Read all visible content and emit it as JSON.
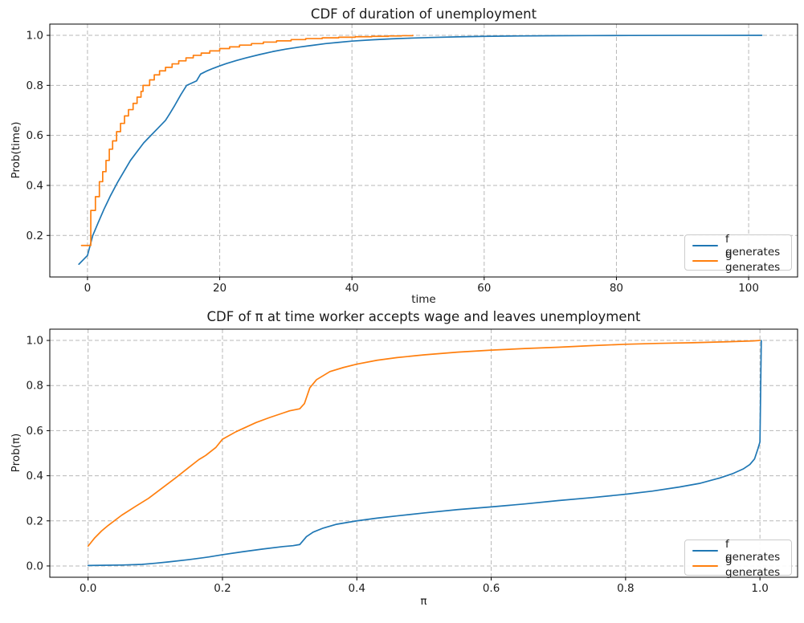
{
  "figure": {
    "background": "#ffffff",
    "text_color": "#1c1c1c",
    "grid_color": "#b8b8b8",
    "spine_color": "#000000"
  },
  "chart_data": [
    {
      "type": "line",
      "title": "CDF of duration of unemployment",
      "xlabel": "time",
      "ylabel": "Prob(time)",
      "xlim": [
        -5.7,
        107.4
      ],
      "ylim": [
        0.034,
        1.045
      ],
      "grid": true,
      "xticks": {
        "values": [
          0,
          20,
          40,
          60,
          80,
          100
        ],
        "labels": [
          "0",
          "20",
          "40",
          "60",
          "80",
          "100"
        ]
      },
      "yticks": {
        "values": [
          0.2,
          0.4,
          0.6,
          0.8,
          1.0
        ],
        "labels": [
          "0.2",
          "0.4",
          "0.6",
          "0.8",
          "1.0"
        ]
      },
      "legend": {
        "location": "lower right"
      },
      "series": [
        {
          "name": "f generates",
          "color": "#1f77b4",
          "style": "line",
          "points": [
            [
              -1.3,
              0.085
            ],
            [
              0,
              0.12
            ],
            [
              0.8,
              0.2
            ],
            [
              1.6,
              0.25
            ],
            [
              2.5,
              0.305
            ],
            [
              3.5,
              0.36
            ],
            [
              4.5,
              0.41
            ],
            [
              5.5,
              0.455
            ],
            [
              6.5,
              0.5
            ],
            [
              7.5,
              0.535
            ],
            [
              8.5,
              0.57
            ],
            [
              9.6,
              0.6
            ],
            [
              10.7,
              0.63
            ],
            [
              11.8,
              0.66
            ],
            [
              12.4,
              0.685
            ],
            [
              13.2,
              0.72
            ],
            [
              14.1,
              0.762
            ],
            [
              15,
              0.8
            ],
            [
              16,
              0.812
            ],
            [
              16.5,
              0.818
            ],
            [
              17.1,
              0.845
            ],
            [
              18,
              0.857
            ],
            [
              19,
              0.868
            ],
            [
              20,
              0.878
            ],
            [
              21,
              0.887
            ],
            [
              22.5,
              0.899
            ],
            [
              24,
              0.91
            ],
            [
              26,
              0.923
            ],
            [
              28,
              0.935
            ],
            [
              30,
              0.945
            ],
            [
              32,
              0.953
            ],
            [
              34,
              0.96
            ],
            [
              36,
              0.967
            ],
            [
              38,
              0.972
            ],
            [
              40,
              0.977
            ],
            [
              43,
              0.982
            ],
            [
              46,
              0.986
            ],
            [
              49,
              0.989
            ],
            [
              52,
              0.9915
            ],
            [
              56,
              0.994
            ],
            [
              60,
              0.996
            ],
            [
              65,
              0.9975
            ],
            [
              70,
              0.9984
            ],
            [
              76,
              0.9991
            ],
            [
              82,
              0.9995
            ],
            [
              90,
              0.9998
            ],
            [
              102,
              1.0
            ]
          ]
        },
        {
          "name": "g generates",
          "color": "#ff7f0e",
          "style": "step",
          "points": [
            [
              -0.9,
              0.16
            ],
            [
              0.45,
              0.16
            ],
            [
              0.5,
              0.3
            ],
            [
              1.2,
              0.355
            ],
            [
              1.8,
              0.415
            ],
            [
              2.3,
              0.455
            ],
            [
              2.8,
              0.5
            ],
            [
              3.3,
              0.545
            ],
            [
              3.8,
              0.578
            ],
            [
              4.4,
              0.615
            ],
            [
              5.0,
              0.648
            ],
            [
              5.6,
              0.678
            ],
            [
              6.2,
              0.703
            ],
            [
              6.9,
              0.728
            ],
            [
              7.5,
              0.753
            ],
            [
              8.1,
              0.776
            ],
            [
              8.4,
              0.8
            ],
            [
              9.4,
              0.822
            ],
            [
              10.1,
              0.842
            ],
            [
              10.9,
              0.858
            ],
            [
              11.8,
              0.872
            ],
            [
              12.8,
              0.886
            ],
            [
              13.8,
              0.898
            ],
            [
              14.9,
              0.91
            ],
            [
              16,
              0.92
            ],
            [
              17.2,
              0.929
            ],
            [
              18.5,
              0.938
            ],
            [
              20,
              0.947
            ],
            [
              21.5,
              0.954
            ],
            [
              23,
              0.961
            ],
            [
              24.8,
              0.967
            ],
            [
              26.6,
              0.973
            ],
            [
              28.6,
              0.978
            ],
            [
              30.8,
              0.983
            ],
            [
              33,
              0.987
            ],
            [
              35.5,
              0.99
            ],
            [
              38,
              0.9925
            ],
            [
              40.5,
              0.9945
            ],
            [
              43,
              0.996
            ],
            [
              45.5,
              0.9975
            ],
            [
              47.5,
              0.9987
            ],
            [
              49.2,
              1.0
            ]
          ]
        }
      ]
    },
    {
      "type": "line",
      "title": "CDF of π at time worker accepts wage and leaves unemployment",
      "xlabel": "π",
      "ylabel": "Prob(π)",
      "xlim": [
        -0.057,
        1.056
      ],
      "ylim": [
        -0.05,
        1.05
      ],
      "grid": true,
      "xticks": {
        "values": [
          0.0,
          0.2,
          0.4,
          0.6,
          0.8,
          1.0
        ],
        "labels": [
          "0.0",
          "0.2",
          "0.4",
          "0.6",
          "0.8",
          "1.0"
        ]
      },
      "yticks": {
        "values": [
          0.0,
          0.2,
          0.4,
          0.6,
          0.8,
          1.0
        ],
        "labels": [
          "0.0",
          "0.2",
          "0.4",
          "0.6",
          "0.8",
          "1.0"
        ]
      },
      "legend": {
        "location": "lower right"
      },
      "series": [
        {
          "name": "f generates",
          "color": "#1f77b4",
          "style": "line",
          "points": [
            [
              0,
              0.002
            ],
            [
              0.05,
              0.004
            ],
            [
              0.08,
              0.007
            ],
            [
              0.1,
              0.012
            ],
            [
              0.12,
              0.018
            ],
            [
              0.15,
              0.028
            ],
            [
              0.18,
              0.04
            ],
            [
              0.2,
              0.05
            ],
            [
              0.23,
              0.063
            ],
            [
              0.26,
              0.075
            ],
            [
              0.29,
              0.086
            ],
            [
              0.305,
              0.09
            ],
            [
              0.315,
              0.095
            ],
            [
              0.325,
              0.13
            ],
            [
              0.335,
              0.15
            ],
            [
              0.35,
              0.168
            ],
            [
              0.37,
              0.185
            ],
            [
              0.4,
              0.2
            ],
            [
              0.43,
              0.212
            ],
            [
              0.46,
              0.222
            ],
            [
              0.5,
              0.235
            ],
            [
              0.55,
              0.25
            ],
            [
              0.6,
              0.262
            ],
            [
              0.65,
              0.275
            ],
            [
              0.7,
              0.29
            ],
            [
              0.75,
              0.303
            ],
            [
              0.8,
              0.318
            ],
            [
              0.84,
              0.332
            ],
            [
              0.88,
              0.35
            ],
            [
              0.91,
              0.366
            ],
            [
              0.94,
              0.39
            ],
            [
              0.96,
              0.41
            ],
            [
              0.975,
              0.43
            ],
            [
              0.985,
              0.45
            ],
            [
              0.992,
              0.475
            ],
            [
              0.997,
              0.52
            ],
            [
              1.0,
              0.55
            ],
            [
              1.002,
              1.0
            ]
          ]
        },
        {
          "name": "g generates",
          "color": "#ff7f0e",
          "style": "line",
          "points": [
            [
              0,
              0.088
            ],
            [
              0.01,
              0.125
            ],
            [
              0.02,
              0.155
            ],
            [
              0.03,
              0.18
            ],
            [
              0.05,
              0.225
            ],
            [
              0.07,
              0.263
            ],
            [
              0.09,
              0.3
            ],
            [
              0.11,
              0.345
            ],
            [
              0.13,
              0.39
            ],
            [
              0.15,
              0.437
            ],
            [
              0.165,
              0.472
            ],
            [
              0.175,
              0.49
            ],
            [
              0.19,
              0.525
            ],
            [
              0.2,
              0.562
            ],
            [
              0.22,
              0.595
            ],
            [
              0.25,
              0.636
            ],
            [
              0.27,
              0.658
            ],
            [
              0.29,
              0.678
            ],
            [
              0.3,
              0.688
            ],
            [
              0.315,
              0.697
            ],
            [
              0.322,
              0.72
            ],
            [
              0.33,
              0.79
            ],
            [
              0.34,
              0.826
            ],
            [
              0.36,
              0.862
            ],
            [
              0.38,
              0.88
            ],
            [
              0.4,
              0.895
            ],
            [
              0.43,
              0.912
            ],
            [
              0.46,
              0.924
            ],
            [
              0.5,
              0.936
            ],
            [
              0.55,
              0.948
            ],
            [
              0.6,
              0.957
            ],
            [
              0.65,
              0.964
            ],
            [
              0.7,
              0.97
            ],
            [
              0.75,
              0.977
            ],
            [
              0.8,
              0.983
            ],
            [
              0.85,
              0.987
            ],
            [
              0.9,
              0.99
            ],
            [
              0.95,
              0.994
            ],
            [
              0.99,
              0.998
            ],
            [
              1.0,
              1.0
            ]
          ]
        }
      ]
    }
  ]
}
